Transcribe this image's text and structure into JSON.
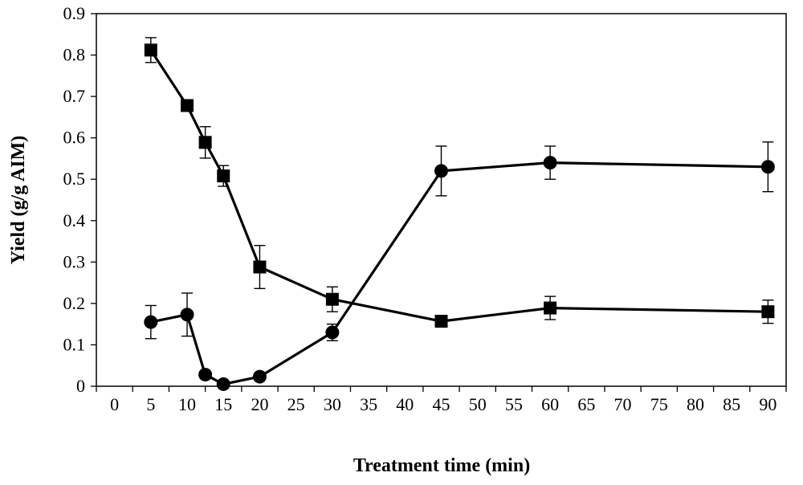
{
  "chart_data": {
    "type": "line",
    "title": "",
    "xlabel": "Treatment time (min)",
    "ylabel": "Yield (g/g AIM)",
    "x_tick_labels": [
      "0",
      "5",
      "10",
      "15",
      "20",
      "25",
      "30",
      "35",
      "40",
      "45",
      "50",
      "55",
      "60",
      "65",
      "70",
      "75",
      "80",
      "85",
      "90"
    ],
    "y_tick_labels": [
      "0",
      "0.1",
      "0.2",
      "0.3",
      "0.4",
      "0.5",
      "0.6",
      "0.7",
      "0.8",
      "0.9"
    ],
    "ylim": [
      0,
      0.9
    ],
    "grid": false,
    "series": [
      {
        "name": "square-series",
        "marker": "square",
        "x": [
          5,
          10,
          12.5,
          15,
          20,
          30,
          45,
          60,
          90
        ],
        "values": [
          0.812,
          0.678,
          0.589,
          0.508,
          0.288,
          0.21,
          0.157,
          0.189,
          0.18
        ],
        "errors": [
          0.03,
          0.0,
          0.038,
          0.025,
          0.052,
          0.03,
          0.012,
          0.028,
          0.028
        ]
      },
      {
        "name": "circle-series",
        "marker": "circle",
        "x": [
          5,
          10,
          12.5,
          15,
          20,
          30,
          45,
          60,
          90
        ],
        "values": [
          0.155,
          0.173,
          0.028,
          0.005,
          0.023,
          0.13,
          0.52,
          0.54,
          0.53
        ],
        "errors": [
          0.04,
          0.052,
          0.0,
          0.0,
          0.0,
          0.02,
          0.06,
          0.04,
          0.06
        ]
      }
    ]
  }
}
